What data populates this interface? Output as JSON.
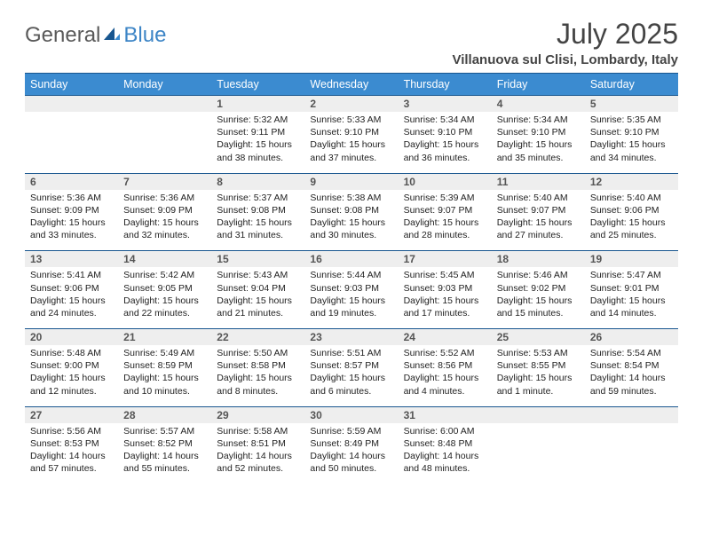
{
  "logo": {
    "text1": "General",
    "text2": "Blue"
  },
  "title": "July 2025",
  "location": "Villanuova sul Clisi, Lombardy, Italy",
  "colors": {
    "header_bg": "#3b8bd0",
    "header_border": "#18568f",
    "daynum_bg": "#eeeeee",
    "text": "#222222",
    "title_text": "#444444",
    "logo_gray": "#5a5a5a",
    "logo_blue": "#3d85c6"
  },
  "weekdays": [
    "Sunday",
    "Monday",
    "Tuesday",
    "Wednesday",
    "Thursday",
    "Friday",
    "Saturday"
  ],
  "weeks": [
    [
      null,
      null,
      {
        "n": "1",
        "sr": "5:32 AM",
        "ss": "9:11 PM",
        "dl": "15 hours and 38 minutes."
      },
      {
        "n": "2",
        "sr": "5:33 AM",
        "ss": "9:10 PM",
        "dl": "15 hours and 37 minutes."
      },
      {
        "n": "3",
        "sr": "5:34 AM",
        "ss": "9:10 PM",
        "dl": "15 hours and 36 minutes."
      },
      {
        "n": "4",
        "sr": "5:34 AM",
        "ss": "9:10 PM",
        "dl": "15 hours and 35 minutes."
      },
      {
        "n": "5",
        "sr": "5:35 AM",
        "ss": "9:10 PM",
        "dl": "15 hours and 34 minutes."
      }
    ],
    [
      {
        "n": "6",
        "sr": "5:36 AM",
        "ss": "9:09 PM",
        "dl": "15 hours and 33 minutes."
      },
      {
        "n": "7",
        "sr": "5:36 AM",
        "ss": "9:09 PM",
        "dl": "15 hours and 32 minutes."
      },
      {
        "n": "8",
        "sr": "5:37 AM",
        "ss": "9:08 PM",
        "dl": "15 hours and 31 minutes."
      },
      {
        "n": "9",
        "sr": "5:38 AM",
        "ss": "9:08 PM",
        "dl": "15 hours and 30 minutes."
      },
      {
        "n": "10",
        "sr": "5:39 AM",
        "ss": "9:07 PM",
        "dl": "15 hours and 28 minutes."
      },
      {
        "n": "11",
        "sr": "5:40 AM",
        "ss": "9:07 PM",
        "dl": "15 hours and 27 minutes."
      },
      {
        "n": "12",
        "sr": "5:40 AM",
        "ss": "9:06 PM",
        "dl": "15 hours and 25 minutes."
      }
    ],
    [
      {
        "n": "13",
        "sr": "5:41 AM",
        "ss": "9:06 PM",
        "dl": "15 hours and 24 minutes."
      },
      {
        "n": "14",
        "sr": "5:42 AM",
        "ss": "9:05 PM",
        "dl": "15 hours and 22 minutes."
      },
      {
        "n": "15",
        "sr": "5:43 AM",
        "ss": "9:04 PM",
        "dl": "15 hours and 21 minutes."
      },
      {
        "n": "16",
        "sr": "5:44 AM",
        "ss": "9:03 PM",
        "dl": "15 hours and 19 minutes."
      },
      {
        "n": "17",
        "sr": "5:45 AM",
        "ss": "9:03 PM",
        "dl": "15 hours and 17 minutes."
      },
      {
        "n": "18",
        "sr": "5:46 AM",
        "ss": "9:02 PM",
        "dl": "15 hours and 15 minutes."
      },
      {
        "n": "19",
        "sr": "5:47 AM",
        "ss": "9:01 PM",
        "dl": "15 hours and 14 minutes."
      }
    ],
    [
      {
        "n": "20",
        "sr": "5:48 AM",
        "ss": "9:00 PM",
        "dl": "15 hours and 12 minutes."
      },
      {
        "n": "21",
        "sr": "5:49 AM",
        "ss": "8:59 PM",
        "dl": "15 hours and 10 minutes."
      },
      {
        "n": "22",
        "sr": "5:50 AM",
        "ss": "8:58 PM",
        "dl": "15 hours and 8 minutes."
      },
      {
        "n": "23",
        "sr": "5:51 AM",
        "ss": "8:57 PM",
        "dl": "15 hours and 6 minutes."
      },
      {
        "n": "24",
        "sr": "5:52 AM",
        "ss": "8:56 PM",
        "dl": "15 hours and 4 minutes."
      },
      {
        "n": "25",
        "sr": "5:53 AM",
        "ss": "8:55 PM",
        "dl": "15 hours and 1 minute."
      },
      {
        "n": "26",
        "sr": "5:54 AM",
        "ss": "8:54 PM",
        "dl": "14 hours and 59 minutes."
      }
    ],
    [
      {
        "n": "27",
        "sr": "5:56 AM",
        "ss": "8:53 PM",
        "dl": "14 hours and 57 minutes."
      },
      {
        "n": "28",
        "sr": "5:57 AM",
        "ss": "8:52 PM",
        "dl": "14 hours and 55 minutes."
      },
      {
        "n": "29",
        "sr": "5:58 AM",
        "ss": "8:51 PM",
        "dl": "14 hours and 52 minutes."
      },
      {
        "n": "30",
        "sr": "5:59 AM",
        "ss": "8:49 PM",
        "dl": "14 hours and 50 minutes."
      },
      {
        "n": "31",
        "sr": "6:00 AM",
        "ss": "8:48 PM",
        "dl": "14 hours and 48 minutes."
      },
      null,
      null
    ]
  ]
}
